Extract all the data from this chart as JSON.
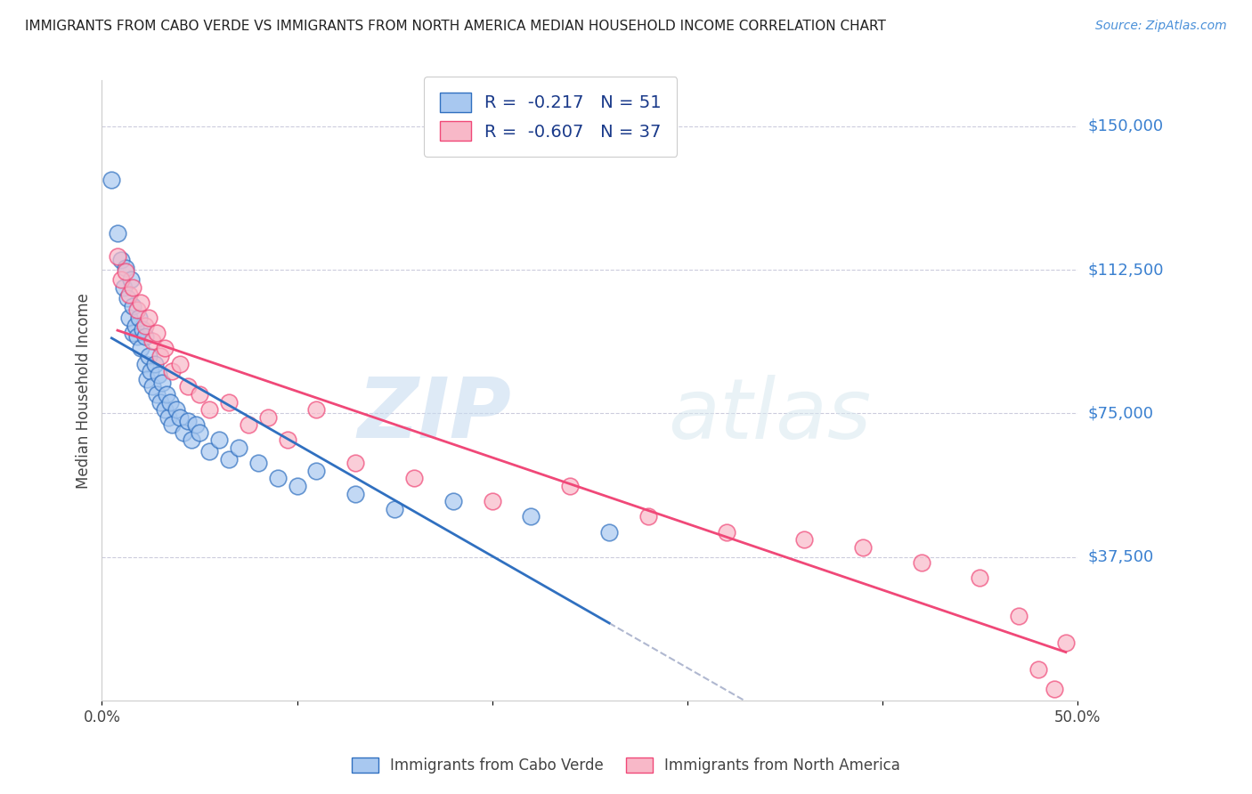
{
  "title": "IMMIGRANTS FROM CABO VERDE VS IMMIGRANTS FROM NORTH AMERICA MEDIAN HOUSEHOLD INCOME CORRELATION CHART",
  "source": "Source: ZipAtlas.com",
  "ylabel": "Median Household Income",
  "ytick_labels": [
    "$37,500",
    "$75,000",
    "$112,500",
    "$150,000"
  ],
  "ytick_values": [
    37500,
    75000,
    112500,
    150000
  ],
  "ymin": 0,
  "ymax": 162000,
  "xmin": 0.0,
  "xmax": 0.5,
  "legend_r1": "R =  -0.217   N = 51",
  "legend_r2": "R =  -0.607   N = 37",
  "watermark_zip": "ZIP",
  "watermark_atlas": "atlas",
  "blue_fill": "#A8C8F0",
  "pink_fill": "#F8B8C8",
  "line_blue": "#3070C0",
  "line_pink": "#F04878",
  "dashed_color": "#B0B8D0",
  "cabo_verde_x": [
    0.005,
    0.008,
    0.01,
    0.011,
    0.012,
    0.013,
    0.014,
    0.015,
    0.016,
    0.016,
    0.017,
    0.018,
    0.019,
    0.02,
    0.021,
    0.022,
    0.022,
    0.023,
    0.024,
    0.025,
    0.026,
    0.027,
    0.028,
    0.029,
    0.03,
    0.031,
    0.032,
    0.033,
    0.034,
    0.035,
    0.036,
    0.038,
    0.04,
    0.042,
    0.044,
    0.046,
    0.048,
    0.05,
    0.055,
    0.06,
    0.065,
    0.07,
    0.08,
    0.09,
    0.1,
    0.11,
    0.13,
    0.15,
    0.18,
    0.22,
    0.26
  ],
  "cabo_verde_y": [
    136000,
    122000,
    115000,
    108000,
    113000,
    105000,
    100000,
    110000,
    96000,
    103000,
    98000,
    95000,
    100000,
    92000,
    97000,
    88000,
    95000,
    84000,
    90000,
    86000,
    82000,
    88000,
    80000,
    85000,
    78000,
    83000,
    76000,
    80000,
    74000,
    78000,
    72000,
    76000,
    74000,
    70000,
    73000,
    68000,
    72000,
    70000,
    65000,
    68000,
    63000,
    66000,
    62000,
    58000,
    56000,
    60000,
    54000,
    50000,
    52000,
    48000,
    44000
  ],
  "north_america_x": [
    0.008,
    0.01,
    0.012,
    0.014,
    0.016,
    0.018,
    0.02,
    0.022,
    0.024,
    0.026,
    0.028,
    0.03,
    0.032,
    0.036,
    0.04,
    0.044,
    0.05,
    0.055,
    0.065,
    0.075,
    0.085,
    0.095,
    0.11,
    0.13,
    0.16,
    0.2,
    0.24,
    0.28,
    0.32,
    0.36,
    0.39,
    0.42,
    0.45,
    0.47,
    0.48,
    0.488,
    0.494
  ],
  "north_america_y": [
    116000,
    110000,
    112000,
    106000,
    108000,
    102000,
    104000,
    98000,
    100000,
    94000,
    96000,
    90000,
    92000,
    86000,
    88000,
    82000,
    80000,
    76000,
    78000,
    72000,
    74000,
    68000,
    76000,
    62000,
    58000,
    52000,
    56000,
    48000,
    44000,
    42000,
    40000,
    36000,
    32000,
    22000,
    8000,
    3000,
    15000
  ]
}
